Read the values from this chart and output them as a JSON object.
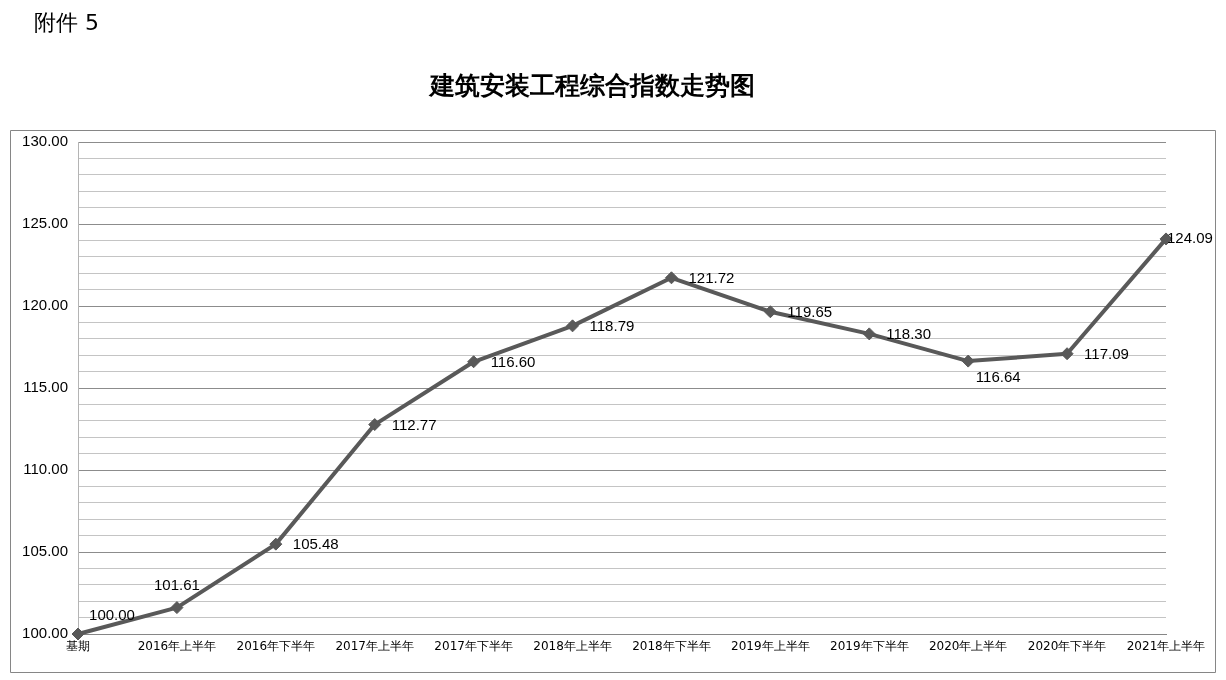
{
  "chart_data": {
    "type": "line",
    "title": "建筑安装工程综合指数走势图",
    "annotations": [
      "附件 5"
    ],
    "categories": [
      "基期",
      "2016年上半年",
      "2016年下半年",
      "2017年上半年",
      "2017年下半年",
      "2018年上半年",
      "2018年下半年",
      "2019年上半年",
      "2019年下半年",
      "2020年上半年",
      "2020年下半年",
      "2021年上半年"
    ],
    "values": [
      100.0,
      101.61,
      105.48,
      112.77,
      116.6,
      118.79,
      121.72,
      119.65,
      118.3,
      116.64,
      117.09,
      124.09
    ],
    "value_labels": [
      "100.00",
      "101.61",
      "105.48",
      "112.77",
      "116.60",
      "118.79",
      "121.72",
      "119.65",
      "118.30",
      "116.64",
      "117.09",
      "124.09"
    ],
    "color": "#595959",
    "marker": "diamond",
    "line_style": "solid",
    "grid": "y",
    "legend": false,
    "ylim": [
      100,
      130
    ],
    "yticks": [
      {
        "value": 100,
        "label": "100.00"
      },
      {
        "value": 101,
        "label": null
      },
      {
        "value": 102,
        "label": null
      },
      {
        "value": 103,
        "label": null
      },
      {
        "value": 104,
        "label": null
      },
      {
        "value": 105,
        "label": "105.00"
      },
      {
        "value": 106,
        "label": null
      },
      {
        "value": 107,
        "label": null
      },
      {
        "value": 108,
        "label": null
      },
      {
        "value": 109,
        "label": null
      },
      {
        "value": 110,
        "label": "110.00"
      },
      {
        "value": 111,
        "label": null
      },
      {
        "value": 112,
        "label": null
      },
      {
        "value": 113,
        "label": null
      },
      {
        "value": 114,
        "label": null
      },
      {
        "value": 115,
        "label": "115.00"
      },
      {
        "value": 116,
        "label": null
      },
      {
        "value": 117,
        "label": null
      },
      {
        "value": 118,
        "label": null
      },
      {
        "value": 119,
        "label": null
      },
      {
        "value": 120,
        "label": "120.00"
      },
      {
        "value": 121,
        "label": null
      },
      {
        "value": 122,
        "label": null
      },
      {
        "value": 123,
        "label": null
      },
      {
        "value": 124,
        "label": null
      },
      {
        "value": 125,
        "label": "125.00"
      },
      {
        "value": 126,
        "label": null
      },
      {
        "value": 127,
        "label": null
      },
      {
        "value": 128,
        "label": null
      },
      {
        "value": 129,
        "label": null
      },
      {
        "value": 130,
        "label": "130.00"
      }
    ]
  }
}
